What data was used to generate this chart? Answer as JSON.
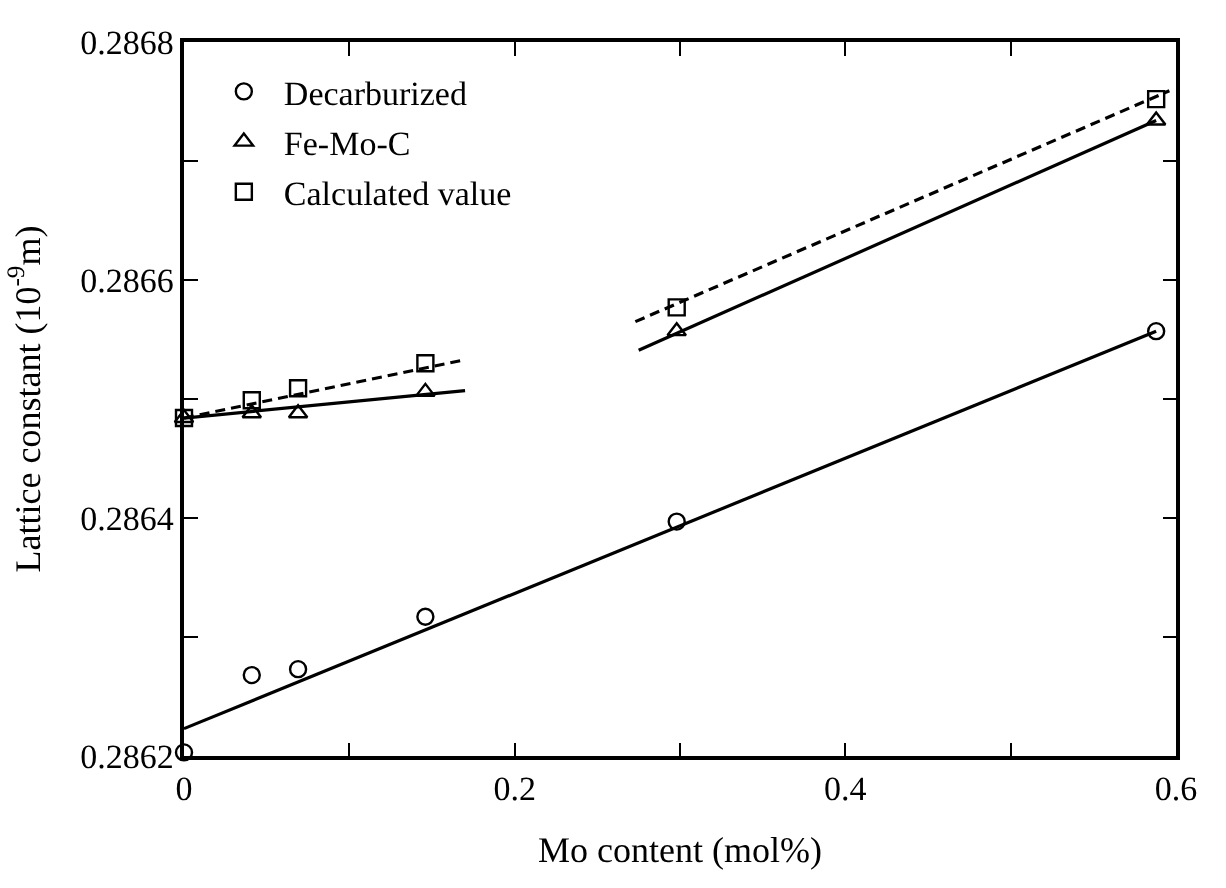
{
  "chart_data": {
    "type": "scatter",
    "xlabel": "Mo content (mol%)",
    "ylabel": "Lattice constant (10$^{-9}$m)",
    "xlim": [
      0,
      0.6
    ],
    "ylim": [
      0.2862,
      0.2868
    ],
    "xticks": [
      0,
      {
        "value": 0.1,
        "label": null
      },
      0.2,
      {
        "value": 0.3,
        "label": null
      },
      0.4,
      {
        "value": 0.5,
        "label": null
      },
      0.6
    ],
    "yticks": [
      0.2862,
      {
        "value": 0.2863,
        "label": null
      },
      0.2864,
      {
        "value": 0.2865,
        "label": null
      },
      0.2866,
      {
        "value": 0.2867,
        "label": null
      },
      0.2868
    ],
    "legend": "top left",
    "series": [
      {
        "name": "Decarburized",
        "marker": "circle",
        "color": "#000000",
        "x": [
          0,
          0.041,
          0.069,
          0.146,
          0.298,
          0.588
        ],
        "values": [
          0.286203,
          0.286268,
          0.286273,
          0.286317,
          0.286397,
          0.286557
        ]
      },
      {
        "name": "Fe-Mo-C",
        "marker": "triangle",
        "color": "#000000",
        "x": [
          0,
          0.041,
          0.069,
          0.146,
          0.298,
          0.588
        ],
        "values": [
          0.286484,
          0.286488,
          0.286488,
          0.286506,
          0.286557,
          0.286734
        ]
      },
      {
        "name": "Calculated value",
        "marker": "square",
        "color": "#000000",
        "x": [
          0,
          0.041,
          0.069,
          0.146,
          0.298,
          0.588
        ],
        "values": [
          0.286484,
          0.286499,
          0.286509,
          0.28653,
          0.286577,
          0.286752
        ]
      },
      {
        "type": "line",
        "line_style": "solid",
        "color": "#000000",
        "x": [
          0,
          0.588
        ],
        "values": [
          0.286223,
          0.286557
        ]
      },
      {
        "type": "line",
        "line_style": "solid",
        "color": "#000000",
        "x": [
          0,
          0.17
        ],
        "values": [
          0.286484,
          0.286507
        ]
      },
      {
        "type": "line",
        "line_style": "solid",
        "color": "#000000",
        "x": [
          0.275,
          0.588
        ],
        "values": [
          0.286541,
          0.286734
        ]
      },
      {
        "type": "line",
        "line_style": "dashed",
        "color": "#000000",
        "x": [
          0,
          0.17
        ],
        "values": [
          0.286484,
          0.286533
        ]
      },
      {
        "type": "line",
        "line_style": "dashed",
        "color": "#000000",
        "x": [
          0.273,
          0.596
        ],
        "values": [
          0.286565,
          0.286759
        ]
      }
    ]
  }
}
